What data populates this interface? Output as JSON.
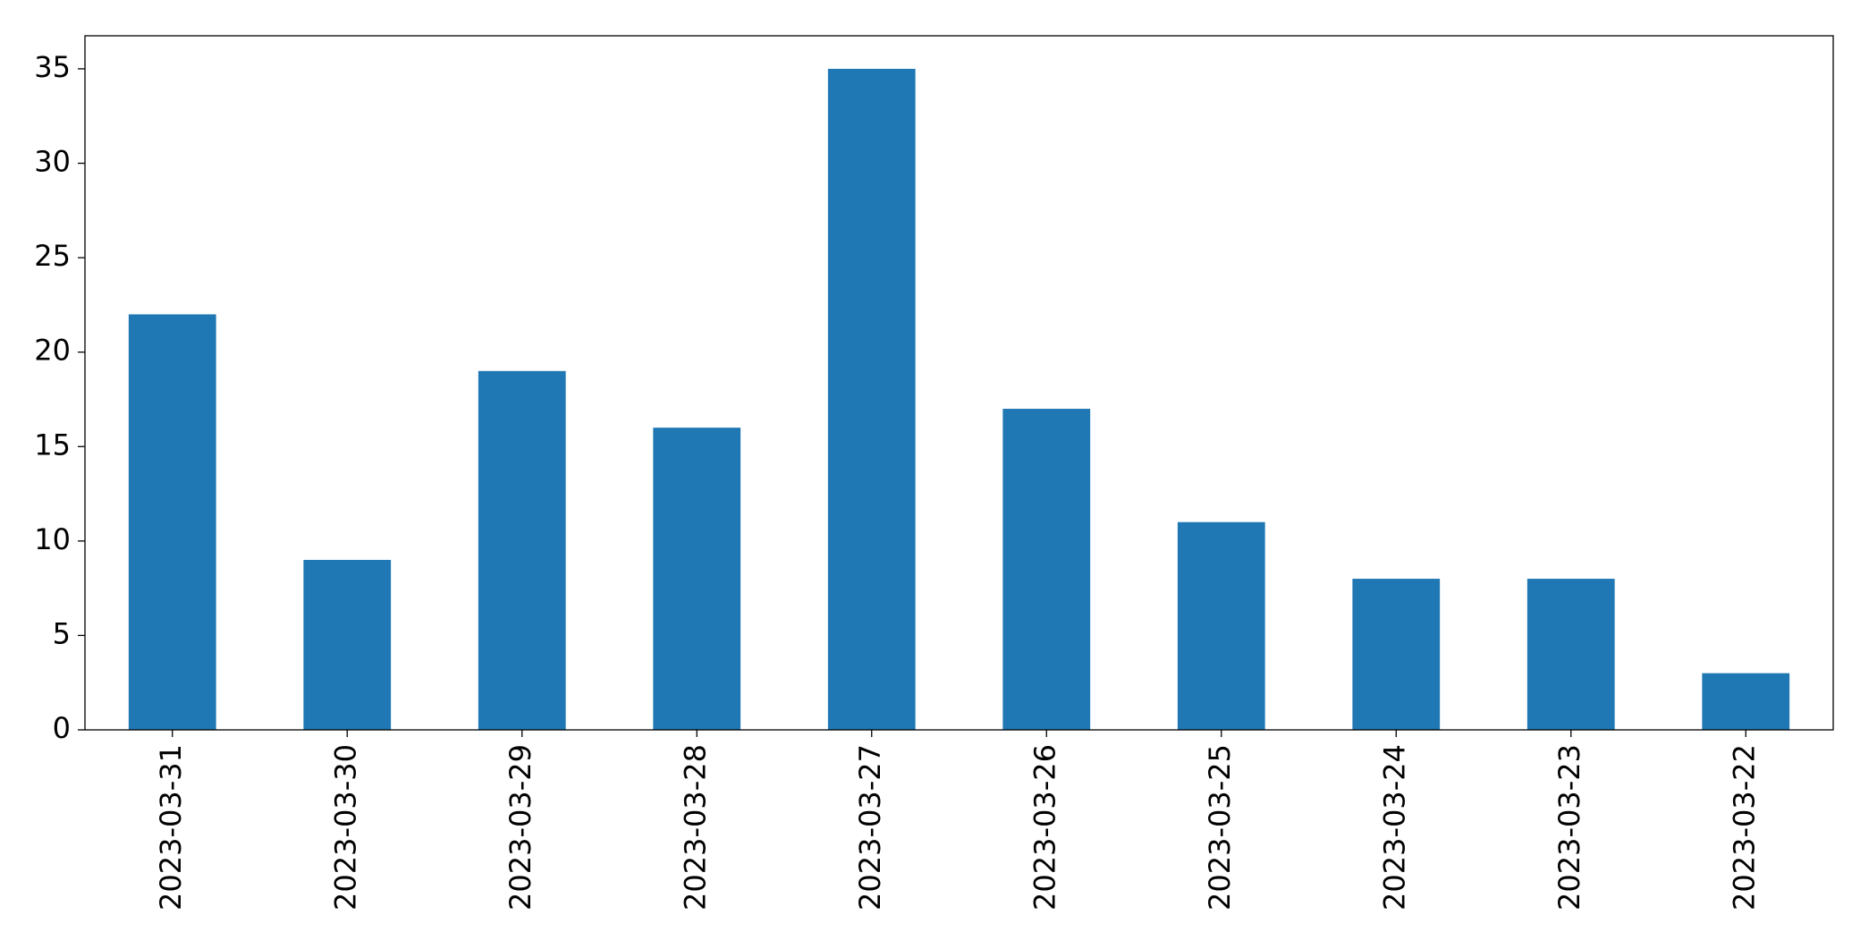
{
  "chart_data": {
    "type": "bar",
    "categories": [
      "2023-03-31",
      "2023-03-30",
      "2023-03-29",
      "2023-03-28",
      "2023-03-27",
      "2023-03-26",
      "2023-03-25",
      "2023-03-24",
      "2023-03-23",
      "2023-03-22"
    ],
    "values": [
      22,
      9,
      19,
      16,
      35,
      17,
      11,
      8,
      8,
      3
    ],
    "color": "#1f77b4",
    "ylim": [
      0,
      36.75
    ],
    "yticks": [
      0,
      5,
      10,
      15,
      20,
      25,
      30,
      35
    ],
    "grid": false
  }
}
